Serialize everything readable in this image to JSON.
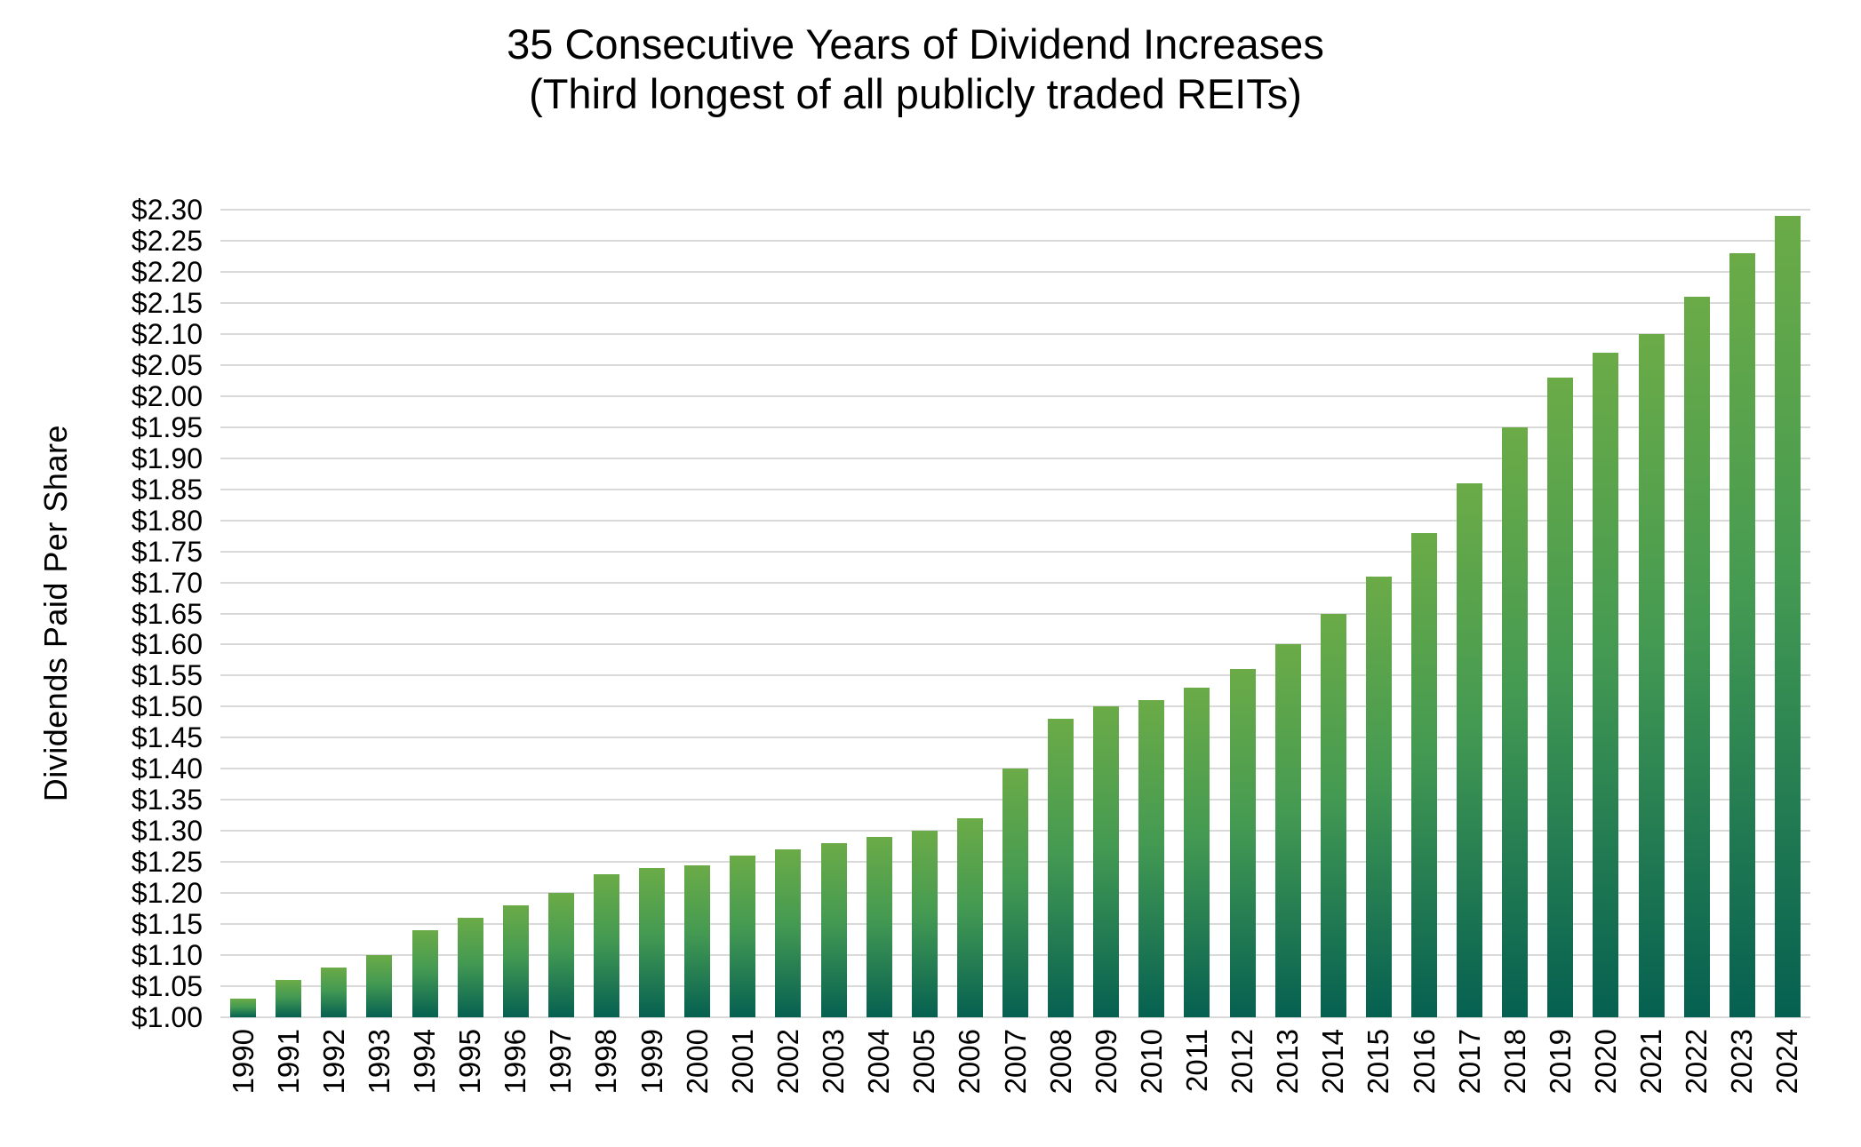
{
  "page": {
    "background": "#ffffff"
  },
  "chart_data": {
    "type": "bar",
    "title": "35 Consecutive Years of Dividend Increases",
    "subtitle": "(Third longest of all publicly traded REITs)",
    "ylabel": "Dividends Paid Per Share",
    "xlabel": "",
    "ylim": [
      1.0,
      2.3
    ],
    "ytick_step": 0.05,
    "grid": "horizontal",
    "legend": "none",
    "y_tick_labels": [
      "$1.00",
      "$1.05",
      "$1.10",
      "$1.15",
      "$1.20",
      "$1.25",
      "$1.30",
      "$1.35",
      "$1.40",
      "$1.45",
      "$1.50",
      "$1.55",
      "$1.60",
      "$1.65",
      "$1.70",
      "$1.75",
      "$1.80",
      "$1.85",
      "$1.90",
      "$1.95",
      "$2.00",
      "$2.05",
      "$2.10",
      "$2.15",
      "$2.20",
      "$2.25",
      "$2.30"
    ],
    "categories": [
      "1990",
      "1991",
      "1992",
      "1993",
      "1994",
      "1995",
      "1996",
      "1997",
      "1998",
      "1999",
      "2000",
      "2001",
      "2002",
      "2003",
      "2004",
      "2005",
      "2006",
      "2007",
      "2008",
      "2009",
      "2010",
      "2011",
      "2012",
      "2013",
      "2014",
      "2015",
      "2016",
      "2017",
      "2018",
      "2019",
      "2020",
      "2021",
      "2022",
      "2023",
      "2024"
    ],
    "values": [
      1.03,
      1.06,
      1.08,
      1.1,
      1.14,
      1.16,
      1.18,
      1.2,
      1.23,
      1.24,
      1.245,
      1.26,
      1.27,
      1.28,
      1.29,
      1.3,
      1.32,
      1.4,
      1.48,
      1.5,
      1.51,
      1.53,
      1.56,
      1.6,
      1.65,
      1.71,
      1.78,
      1.86,
      1.95,
      2.03,
      2.07,
      2.1,
      2.16,
      2.23,
      2.29
    ],
    "colors": {
      "bar_gradient_top": "#6bab47",
      "bar_gradient_mid": "#449a52",
      "bar_gradient_bottom": "#056051",
      "gridline": "#d9d9d9",
      "text": "#000000"
    }
  }
}
